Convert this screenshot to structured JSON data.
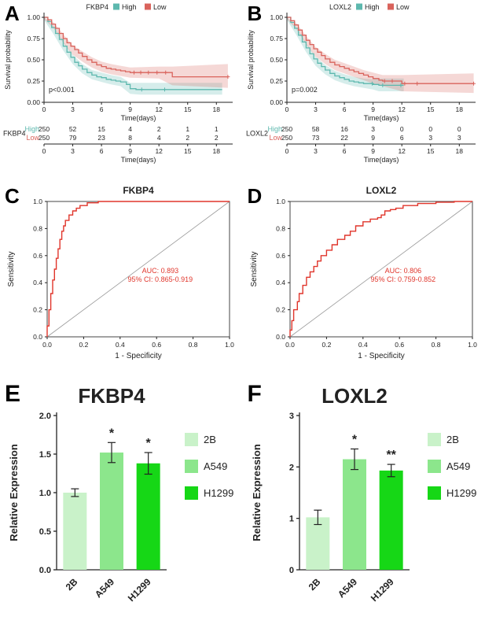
{
  "panels": {
    "a": "A",
    "b": "B",
    "c": "C",
    "d": "D",
    "e": "E",
    "f": "F"
  },
  "chart_data": [
    {
      "id": "km-fkbp4",
      "type": "line",
      "subtype": "km",
      "panel": "A",
      "gene": "FKBP4",
      "legend_labels": [
        "High",
        "Low"
      ],
      "pvalue": "p<0.001",
      "xlabel": "Time(days)",
      "ylabel": "Survival probability",
      "xticks": [
        0,
        3,
        6,
        9,
        12,
        15,
        18
      ],
      "xmax": 19.7,
      "ytick_values": [
        0,
        0.25,
        0.5,
        0.75,
        1
      ],
      "ytick_labels": [
        "0.00",
        "0.25",
        "0.50",
        "0.75",
        "1.00"
      ],
      "series": [
        {
          "name": "High",
          "color": "#5db8ae",
          "band_color": "rgba(93,184,174,0.25)",
          "points": [
            [
              0,
              1
            ],
            [
              0.4,
              0.95
            ],
            [
              0.8,
              0.88
            ],
            [
              1.2,
              0.81
            ],
            [
              1.6,
              0.74
            ],
            [
              2,
              0.66
            ],
            [
              2.4,
              0.59
            ],
            [
              2.8,
              0.53
            ],
            [
              3.2,
              0.47
            ],
            [
              3.6,
              0.43
            ],
            [
              4,
              0.39
            ],
            [
              4.5,
              0.35
            ],
            [
              5,
              0.32
            ],
            [
              5.5,
              0.3
            ],
            [
              6,
              0.29
            ],
            [
              6.5,
              0.27
            ],
            [
              7,
              0.26
            ],
            [
              7.5,
              0.25
            ],
            [
              8,
              0.24
            ],
            [
              8.6,
              0.21
            ],
            [
              9,
              0.16
            ],
            [
              9.6,
              0.15
            ],
            [
              18.6,
              0.15
            ]
          ],
          "band": [
            [
              0,
              0.97,
              1
            ],
            [
              1,
              0.8,
              0.89
            ],
            [
              2,
              0.61,
              0.72
            ],
            [
              3,
              0.45,
              0.56
            ],
            [
              4,
              0.34,
              0.45
            ],
            [
              5,
              0.27,
              0.38
            ],
            [
              6,
              0.24,
              0.35
            ],
            [
              7,
              0.21,
              0.32
            ],
            [
              8,
              0.19,
              0.3
            ],
            [
              9,
              0.1,
              0.23
            ],
            [
              10,
              0.09,
              0.23
            ],
            [
              18.6,
              0.09,
              0.23
            ]
          ],
          "censors": [
            10.2,
            12.6
          ]
        },
        {
          "name": "Low",
          "color": "#d9635c",
          "band_color": "rgba(217,99,92,0.25)",
          "points": [
            [
              0,
              1
            ],
            [
              0.4,
              0.97
            ],
            [
              0.8,
              0.92
            ],
            [
              1.2,
              0.87
            ],
            [
              1.6,
              0.81
            ],
            [
              2,
              0.75
            ],
            [
              2.4,
              0.7
            ],
            [
              2.8,
              0.66
            ],
            [
              3.2,
              0.62
            ],
            [
              3.6,
              0.58
            ],
            [
              4,
              0.54
            ],
            [
              4.5,
              0.5
            ],
            [
              5,
              0.47
            ],
            [
              5.5,
              0.44
            ],
            [
              6,
              0.42
            ],
            [
              6.5,
              0.4
            ],
            [
              7,
              0.39
            ],
            [
              7.5,
              0.38
            ],
            [
              8,
              0.37
            ],
            [
              8.5,
              0.36
            ],
            [
              9,
              0.35
            ],
            [
              13,
              0.35
            ],
            [
              13.4,
              0.3
            ],
            [
              19.2,
              0.3
            ]
          ],
          "band": [
            [
              0,
              0.98,
              1
            ],
            [
              1,
              0.87,
              0.94
            ],
            [
              2,
              0.7,
              0.8
            ],
            [
              3,
              0.56,
              0.67
            ],
            [
              4,
              0.48,
              0.6
            ],
            [
              5,
              0.41,
              0.53
            ],
            [
              6,
              0.36,
              0.48
            ],
            [
              7,
              0.33,
              0.45
            ],
            [
              8,
              0.31,
              0.43
            ],
            [
              9,
              0.29,
              0.41
            ],
            [
              12,
              0.28,
              0.42
            ],
            [
              13.4,
              0.2,
              0.42
            ],
            [
              19.2,
              0.17,
              0.45
            ]
          ],
          "censors": [
            9.4,
            10.1,
            10.9,
            11.8,
            12.7,
            19.2
          ]
        }
      ],
      "risk_table": {
        "label": "FKBP4",
        "xlabel": "Time(days)",
        "rows": [
          {
            "name": "High",
            "counts": [
              "250",
              "52",
              "15",
              "4",
              "2",
              "1",
              "1"
            ]
          },
          {
            "name": "Low",
            "counts": [
              "250",
              "79",
              "23",
              "8",
              "4",
              "2",
              "2"
            ]
          }
        ]
      }
    },
    {
      "id": "km-loxl2",
      "type": "line",
      "subtype": "km",
      "panel": "B",
      "gene": "LOXL2",
      "legend_labels": [
        "High",
        "Low"
      ],
      "pvalue": "p=0.002",
      "xlabel": "Time(days)",
      "ylabel": "Survival probability",
      "xticks": [
        0,
        3,
        6,
        9,
        12,
        15,
        18
      ],
      "xmax": 19.7,
      "ytick_values": [
        0,
        0.25,
        0.5,
        0.75,
        1
      ],
      "ytick_labels": [
        "0.00",
        "0.25",
        "0.50",
        "0.75",
        "1.00"
      ],
      "series": [
        {
          "name": "High",
          "color": "#5db8ae",
          "band_color": "rgba(93,184,174,0.25)",
          "points": [
            [
              0,
              1
            ],
            [
              0.4,
              0.94
            ],
            [
              0.8,
              0.87
            ],
            [
              1.2,
              0.79
            ],
            [
              1.6,
              0.71
            ],
            [
              2,
              0.64
            ],
            [
              2.4,
              0.57
            ],
            [
              2.8,
              0.51
            ],
            [
              3.2,
              0.46
            ],
            [
              3.6,
              0.42
            ],
            [
              4,
              0.38
            ],
            [
              4.5,
              0.34
            ],
            [
              5,
              0.31
            ],
            [
              5.5,
              0.29
            ],
            [
              6,
              0.27
            ],
            [
              6.5,
              0.25
            ],
            [
              7,
              0.24
            ],
            [
              7.5,
              0.23
            ],
            [
              8,
              0.22
            ],
            [
              9,
              0.21
            ],
            [
              9.6,
              0.2
            ],
            [
              12.2,
              0.2
            ]
          ],
          "band": [
            [
              0,
              0.97,
              1
            ],
            [
              1,
              0.79,
              0.88
            ],
            [
              2,
              0.59,
              0.7
            ],
            [
              3,
              0.43,
              0.54
            ],
            [
              4,
              0.33,
              0.44
            ],
            [
              5,
              0.26,
              0.37
            ],
            [
              6,
              0.22,
              0.33
            ],
            [
              7,
              0.19,
              0.3
            ],
            [
              8,
              0.17,
              0.28
            ],
            [
              9,
              0.15,
              0.27
            ],
            [
              9.6,
              0.13,
              0.28
            ],
            [
              12.2,
              0.13,
              0.28
            ]
          ],
          "censors": [
            8.9,
            10.0,
            11.9
          ]
        },
        {
          "name": "Low",
          "color": "#d9635c",
          "band_color": "rgba(217,99,92,0.25)",
          "points": [
            [
              0,
              1
            ],
            [
              0.4,
              0.96
            ],
            [
              0.8,
              0.91
            ],
            [
              1.2,
              0.85
            ],
            [
              1.6,
              0.79
            ],
            [
              2,
              0.73
            ],
            [
              2.4,
              0.68
            ],
            [
              2.8,
              0.63
            ],
            [
              3.2,
              0.59
            ],
            [
              3.6,
              0.55
            ],
            [
              4,
              0.51
            ],
            [
              4.5,
              0.47
            ],
            [
              5,
              0.44
            ],
            [
              5.5,
              0.42
            ],
            [
              6,
              0.4
            ],
            [
              6.5,
              0.38
            ],
            [
              7,
              0.36
            ],
            [
              7.5,
              0.34
            ],
            [
              8,
              0.32
            ],
            [
              8.5,
              0.3
            ],
            [
              9,
              0.28
            ],
            [
              9.6,
              0.26
            ],
            [
              10,
              0.25
            ],
            [
              11.6,
              0.25
            ],
            [
              12,
              0.22
            ],
            [
              19.5,
              0.22
            ]
          ],
          "band": [
            [
              0,
              0.98,
              1
            ],
            [
              1,
              0.86,
              0.93
            ],
            [
              2,
              0.68,
              0.78
            ],
            [
              3,
              0.54,
              0.65
            ],
            [
              4,
              0.45,
              0.57
            ],
            [
              5,
              0.38,
              0.5
            ],
            [
              6,
              0.34,
              0.46
            ],
            [
              7,
              0.3,
              0.42
            ],
            [
              8,
              0.26,
              0.38
            ],
            [
              9,
              0.22,
              0.35
            ],
            [
              10,
              0.19,
              0.32
            ],
            [
              12,
              0.13,
              0.32
            ],
            [
              19.5,
              0.11,
              0.34
            ]
          ],
          "censors": [
            10.2,
            11,
            12.3,
            13.6,
            19.5
          ]
        }
      ],
      "risk_table": {
        "label": "LOXL2",
        "xlabel": "Time(days)",
        "rows": [
          {
            "name": "High",
            "counts": [
              "250",
              "58",
              "16",
              "3",
              "0",
              "0",
              "0"
            ]
          },
          {
            "name": "Low",
            "counts": [
              "250",
              "73",
              "22",
              "9",
              "6",
              "3",
              "3"
            ]
          }
        ]
      }
    },
    {
      "id": "roc-fkbp4",
      "type": "line",
      "subtype": "roc",
      "panel": "C",
      "title": "FKBP4",
      "xlabel": "1 - Specificity",
      "ylabel": "Sensitivity",
      "color": "#e0352b",
      "auc_text": "AUC: 0.893",
      "ci_text": "95% CI: 0.865-0.919",
      "tick_values": [
        0,
        0.2,
        0.4,
        0.6,
        0.8,
        1
      ],
      "tick_labels": [
        "0.0",
        "0.2",
        "0.4",
        "0.6",
        "0.8",
        "1.0"
      ],
      "points": [
        [
          0,
          0
        ],
        [
          0.01,
          0.08
        ],
        [
          0.02,
          0.2
        ],
        [
          0.03,
          0.32
        ],
        [
          0.04,
          0.42
        ],
        [
          0.05,
          0.5
        ],
        [
          0.06,
          0.58
        ],
        [
          0.07,
          0.65
        ],
        [
          0.08,
          0.72
        ],
        [
          0.09,
          0.78
        ],
        [
          0.1,
          0.82
        ],
        [
          0.12,
          0.86
        ],
        [
          0.14,
          0.9
        ],
        [
          0.16,
          0.93
        ],
        [
          0.18,
          0.95
        ],
        [
          0.22,
          0.97
        ],
        [
          0.28,
          0.99
        ],
        [
          0.35,
          1
        ],
        [
          1,
          1
        ]
      ]
    },
    {
      "id": "roc-loxl2",
      "type": "line",
      "subtype": "roc",
      "panel": "D",
      "title": "LOXL2",
      "xlabel": "1 - Specificity",
      "ylabel": "Sensitivity",
      "color": "#e0352b",
      "auc_text": "AUC: 0.806",
      "ci_text": "95% CI: 0.759-0.852",
      "tick_values": [
        0,
        0.2,
        0.4,
        0.6,
        0.8,
        1
      ],
      "tick_labels": [
        "0.0",
        "0.2",
        "0.4",
        "0.6",
        "0.8",
        "1.0"
      ],
      "points": [
        [
          0,
          0
        ],
        [
          0.01,
          0.05
        ],
        [
          0.02,
          0.12
        ],
        [
          0.04,
          0.2
        ],
        [
          0.05,
          0.26
        ],
        [
          0.07,
          0.32
        ],
        [
          0.09,
          0.38
        ],
        [
          0.11,
          0.44
        ],
        [
          0.13,
          0.48
        ],
        [
          0.15,
          0.52
        ],
        [
          0.17,
          0.56
        ],
        [
          0.2,
          0.6
        ],
        [
          0.23,
          0.64
        ],
        [
          0.26,
          0.68
        ],
        [
          0.3,
          0.72
        ],
        [
          0.33,
          0.75
        ],
        [
          0.36,
          0.78
        ],
        [
          0.4,
          0.82
        ],
        [
          0.44,
          0.85
        ],
        [
          0.48,
          0.87
        ],
        [
          0.5,
          0.88
        ],
        [
          0.52,
          0.9
        ],
        [
          0.55,
          0.93
        ],
        [
          0.58,
          0.94
        ],
        [
          0.62,
          0.95
        ],
        [
          0.7,
          0.97
        ],
        [
          0.8,
          0.985
        ],
        [
          0.9,
          0.995
        ],
        [
          1,
          1
        ]
      ]
    },
    {
      "id": "bar-fkbp4",
      "type": "bar",
      "panel": "E",
      "title": "FKBP4",
      "ylabel": "Relative Expression",
      "categories": [
        "2B",
        "A549",
        "H1299"
      ],
      "values": [
        1.0,
        1.52,
        1.38
      ],
      "errors": [
        0.05,
        0.13,
        0.14
      ],
      "sig": [
        "",
        "*",
        "*"
      ],
      "ylim": [
        0,
        2
      ],
      "ytick_values": [
        0,
        0.5,
        1,
        1.5,
        2
      ],
      "ytick_labels": [
        "0.0",
        "0.5",
        "1.0",
        "1.5",
        "2.0"
      ],
      "colors": [
        "#c9f2c9",
        "#8ce68c",
        "#16d716"
      ],
      "legend": [
        "2B",
        "A549",
        "H1299"
      ]
    },
    {
      "id": "bar-loxl2",
      "type": "bar",
      "panel": "F",
      "title": "LOXL2",
      "ylabel": "Relative Expression",
      "categories": [
        "2B",
        "A549",
        "H1299"
      ],
      "values": [
        1.02,
        2.15,
        1.93
      ],
      "errors": [
        0.14,
        0.2,
        0.12
      ],
      "sig": [
        "",
        "*",
        "**"
      ],
      "ylim": [
        0,
        3
      ],
      "ytick_values": [
        0,
        1,
        2,
        3
      ],
      "ytick_labels": [
        "0",
        "1",
        "2",
        "3"
      ],
      "colors": [
        "#c9f2c9",
        "#8ce68c",
        "#16d716"
      ],
      "legend": [
        "2B",
        "A549",
        "H1299"
      ]
    }
  ]
}
